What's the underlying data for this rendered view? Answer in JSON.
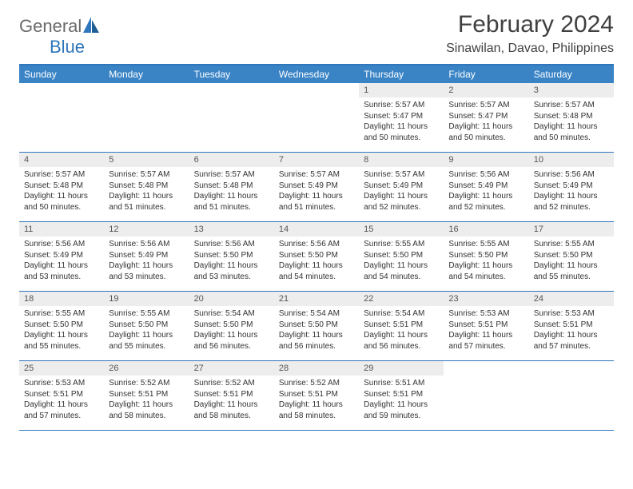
{
  "logo": {
    "text1": "General",
    "text2": "Blue"
  },
  "title": "February 2024",
  "location": "Sinawilan, Davao, Philippines",
  "colors": {
    "header_bg": "#3a84c6",
    "header_border": "#2f76bc",
    "daynum_bg": "#ededed",
    "text": "#404040"
  },
  "day_labels": [
    "Sunday",
    "Monday",
    "Tuesday",
    "Wednesday",
    "Thursday",
    "Friday",
    "Saturday"
  ],
  "weeks": [
    [
      null,
      null,
      null,
      null,
      {
        "n": "1",
        "sr": "5:57 AM",
        "ss": "5:47 PM",
        "dl": "11 hours and 50 minutes."
      },
      {
        "n": "2",
        "sr": "5:57 AM",
        "ss": "5:47 PM",
        "dl": "11 hours and 50 minutes."
      },
      {
        "n": "3",
        "sr": "5:57 AM",
        "ss": "5:48 PM",
        "dl": "11 hours and 50 minutes."
      }
    ],
    [
      {
        "n": "4",
        "sr": "5:57 AM",
        "ss": "5:48 PM",
        "dl": "11 hours and 50 minutes."
      },
      {
        "n": "5",
        "sr": "5:57 AM",
        "ss": "5:48 PM",
        "dl": "11 hours and 51 minutes."
      },
      {
        "n": "6",
        "sr": "5:57 AM",
        "ss": "5:48 PM",
        "dl": "11 hours and 51 minutes."
      },
      {
        "n": "7",
        "sr": "5:57 AM",
        "ss": "5:49 PM",
        "dl": "11 hours and 51 minutes."
      },
      {
        "n": "8",
        "sr": "5:57 AM",
        "ss": "5:49 PM",
        "dl": "11 hours and 52 minutes."
      },
      {
        "n": "9",
        "sr": "5:56 AM",
        "ss": "5:49 PM",
        "dl": "11 hours and 52 minutes."
      },
      {
        "n": "10",
        "sr": "5:56 AM",
        "ss": "5:49 PM",
        "dl": "11 hours and 52 minutes."
      }
    ],
    [
      {
        "n": "11",
        "sr": "5:56 AM",
        "ss": "5:49 PM",
        "dl": "11 hours and 53 minutes."
      },
      {
        "n": "12",
        "sr": "5:56 AM",
        "ss": "5:49 PM",
        "dl": "11 hours and 53 minutes."
      },
      {
        "n": "13",
        "sr": "5:56 AM",
        "ss": "5:50 PM",
        "dl": "11 hours and 53 minutes."
      },
      {
        "n": "14",
        "sr": "5:56 AM",
        "ss": "5:50 PM",
        "dl": "11 hours and 54 minutes."
      },
      {
        "n": "15",
        "sr": "5:55 AM",
        "ss": "5:50 PM",
        "dl": "11 hours and 54 minutes."
      },
      {
        "n": "16",
        "sr": "5:55 AM",
        "ss": "5:50 PM",
        "dl": "11 hours and 54 minutes."
      },
      {
        "n": "17",
        "sr": "5:55 AM",
        "ss": "5:50 PM",
        "dl": "11 hours and 55 minutes."
      }
    ],
    [
      {
        "n": "18",
        "sr": "5:55 AM",
        "ss": "5:50 PM",
        "dl": "11 hours and 55 minutes."
      },
      {
        "n": "19",
        "sr": "5:55 AM",
        "ss": "5:50 PM",
        "dl": "11 hours and 55 minutes."
      },
      {
        "n": "20",
        "sr": "5:54 AM",
        "ss": "5:50 PM",
        "dl": "11 hours and 56 minutes."
      },
      {
        "n": "21",
        "sr": "5:54 AM",
        "ss": "5:50 PM",
        "dl": "11 hours and 56 minutes."
      },
      {
        "n": "22",
        "sr": "5:54 AM",
        "ss": "5:51 PM",
        "dl": "11 hours and 56 minutes."
      },
      {
        "n": "23",
        "sr": "5:53 AM",
        "ss": "5:51 PM",
        "dl": "11 hours and 57 minutes."
      },
      {
        "n": "24",
        "sr": "5:53 AM",
        "ss": "5:51 PM",
        "dl": "11 hours and 57 minutes."
      }
    ],
    [
      {
        "n": "25",
        "sr": "5:53 AM",
        "ss": "5:51 PM",
        "dl": "11 hours and 57 minutes."
      },
      {
        "n": "26",
        "sr": "5:52 AM",
        "ss": "5:51 PM",
        "dl": "11 hours and 58 minutes."
      },
      {
        "n": "27",
        "sr": "5:52 AM",
        "ss": "5:51 PM",
        "dl": "11 hours and 58 minutes."
      },
      {
        "n": "28",
        "sr": "5:52 AM",
        "ss": "5:51 PM",
        "dl": "11 hours and 58 minutes."
      },
      {
        "n": "29",
        "sr": "5:51 AM",
        "ss": "5:51 PM",
        "dl": "11 hours and 59 minutes."
      },
      null,
      null
    ]
  ]
}
